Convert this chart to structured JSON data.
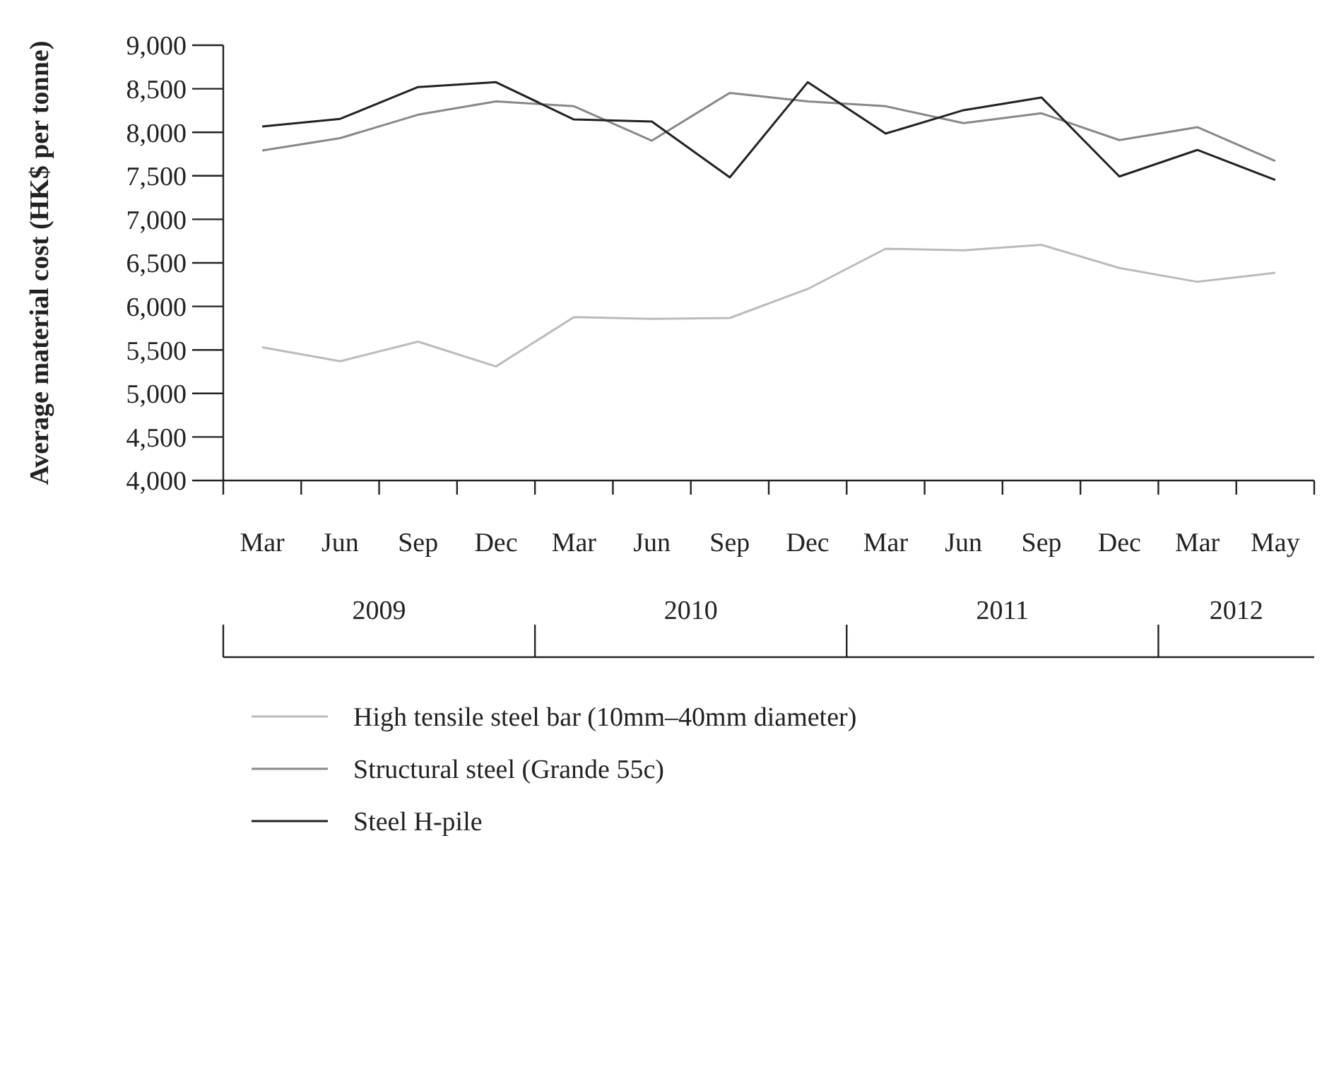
{
  "chart_data": {
    "type": "line",
    "ylabel": "Average material cost (HK$ per tonne)",
    "categories": [
      "Mar",
      "Jun",
      "Sep",
      "Dec",
      "Mar",
      "Jun",
      "Sep",
      "Dec",
      "Mar",
      "Jun",
      "Sep",
      "Dec",
      "Mar",
      "May"
    ],
    "series": [
      {
        "name": "High tensile steel bar (10mm–40mm diameter)",
        "color": "#bbbbbb",
        "values": [
          5530,
          5370,
          5595,
          5310,
          5877,
          5857,
          5867,
          6200,
          6662,
          6645,
          6707,
          6441,
          6282,
          6386
        ]
      },
      {
        "name": "Structural steel (Grande 55c)",
        "color": "#888888",
        "values": [
          7790,
          7933,
          8202,
          8355,
          8299,
          7904,
          8452,
          8355,
          8299,
          8105,
          8218,
          7910,
          8059,
          7670
        ]
      },
      {
        "name": "Steel H-pile",
        "color": "#222222",
        "values": [
          8066,
          8154,
          8520,
          8575,
          8147,
          8124,
          7482,
          8575,
          7985,
          8254,
          8400,
          7492,
          7797,
          7453
        ]
      }
    ],
    "ylim": [
      4000,
      9000
    ],
    "yticks": [
      {
        "value": 4000,
        "label": "4,000"
      },
      {
        "value": 4500,
        "label": "4,500"
      },
      {
        "value": 5000,
        "label": "5,000"
      },
      {
        "value": 5500,
        "label": "5,500"
      },
      {
        "value": 6000,
        "label": "6,000"
      },
      {
        "value": 6500,
        "label": "6,500"
      },
      {
        "value": 7000,
        "label": "7,000"
      },
      {
        "value": 7500,
        "label": "7,500"
      },
      {
        "value": 8000,
        "label": "8,000"
      },
      {
        "value": 8500,
        "label": "8,500"
      },
      {
        "value": 9000,
        "label": "9,000"
      }
    ],
    "annotations": [
      "2009",
      "2010",
      "2011",
      "2012"
    ],
    "legend": "bottom",
    "grid": false,
    "marker": "none",
    "line_style": "solid"
  }
}
